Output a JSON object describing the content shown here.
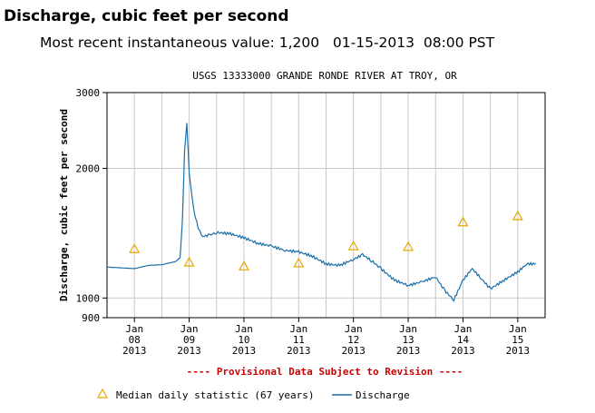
{
  "page": {
    "title": "Discharge, cubic feet per second",
    "recent_label": "Most recent instantaneous value:",
    "recent_value": "1,200",
    "recent_date": "01-15-2013",
    "recent_time": "08:00 PST"
  },
  "chart_data": {
    "type": "line",
    "title": "USGS 13333000 GRANDE RONDE RIVER AT TROY, OR",
    "ylabel": "Discharge, cubic feet per second",
    "xlabel": "",
    "yscale": "log",
    "ylim": [
      900,
      3000
    ],
    "ytick_labels": [
      "3000",
      "2000",
      "1000",
      "900"
    ],
    "xlim": [
      "2013-01-07 12:00",
      "2013-01-15 12:00"
    ],
    "xtick_labels": [
      [
        "Jan",
        "08",
        "2013"
      ],
      [
        "Jan",
        "09",
        "2013"
      ],
      [
        "Jan",
        "10",
        "2013"
      ],
      [
        "Jan",
        "11",
        "2013"
      ],
      [
        "Jan",
        "12",
        "2013"
      ],
      [
        "Jan",
        "13",
        "2013"
      ],
      [
        "Jan",
        "14",
        "2013"
      ],
      [
        "Jan",
        "15",
        "2013"
      ]
    ],
    "grid": true,
    "provisional_note": "---- Provisional Data Subject to Revision ----",
    "series": [
      {
        "name": "Discharge",
        "color": "#1a6fa8",
        "x": [
          "2013-01-07 12:00",
          "2013-01-08 00:00",
          "2013-01-08 06:00",
          "2013-01-08 12:00",
          "2013-01-08 18:00",
          "2013-01-08 20:00",
          "2013-01-08 21:00",
          "2013-01-08 22:00",
          "2013-01-08 23:00",
          "2013-01-09 00:00",
          "2013-01-09 02:00",
          "2013-01-09 04:00",
          "2013-01-09 06:00",
          "2013-01-09 09:00",
          "2013-01-09 12:00",
          "2013-01-09 18:00",
          "2013-01-10 00:00",
          "2013-01-10 06:00",
          "2013-01-10 12:00",
          "2013-01-10 18:00",
          "2013-01-11 00:00",
          "2013-01-11 06:00",
          "2013-01-11 12:00",
          "2013-01-11 18:00",
          "2013-01-12 00:00",
          "2013-01-12 04:00",
          "2013-01-12 08:00",
          "2013-01-12 12:00",
          "2013-01-12 18:00",
          "2013-01-13 00:00",
          "2013-01-13 06:00",
          "2013-01-13 12:00",
          "2013-01-13 16:00",
          "2013-01-13 20:00",
          "2013-01-14 00:00",
          "2013-01-14 04:00",
          "2013-01-14 08:00",
          "2013-01-14 12:00",
          "2013-01-14 18:00",
          "2013-01-15 00:00",
          "2013-01-15 04:00",
          "2013-01-15 08:00"
        ],
        "values": [
          1180,
          1170,
          1190,
          1195,
          1215,
          1240,
          1500,
          2200,
          2550,
          1950,
          1600,
          1450,
          1390,
          1400,
          1420,
          1410,
          1380,
          1340,
          1320,
          1290,
          1280,
          1250,
          1200,
          1190,
          1230,
          1260,
          1220,
          1170,
          1100,
          1070,
          1090,
          1120,
          1040,
          990,
          1100,
          1170,
          1110,
          1050,
          1100,
          1150,
          1200,
          1200
        ]
      },
      {
        "name": "Median daily statistic (67 years)",
        "color": "#e8a800",
        "marker": "triangle",
        "x": [
          "2013-01-08 00:00",
          "2013-01-09 00:00",
          "2013-01-10 00:00",
          "2013-01-11 00:00",
          "2013-01-12 00:00",
          "2013-01-13 00:00",
          "2013-01-14 00:00",
          "2013-01-15 00:00"
        ],
        "values": [
          1300,
          1210,
          1185,
          1205,
          1320,
          1315,
          1500,
          1550
        ]
      }
    ],
    "legend": {
      "position": "bottom",
      "median_label": "Median daily statistic (67 years)",
      "discharge_label": "Discharge"
    }
  }
}
